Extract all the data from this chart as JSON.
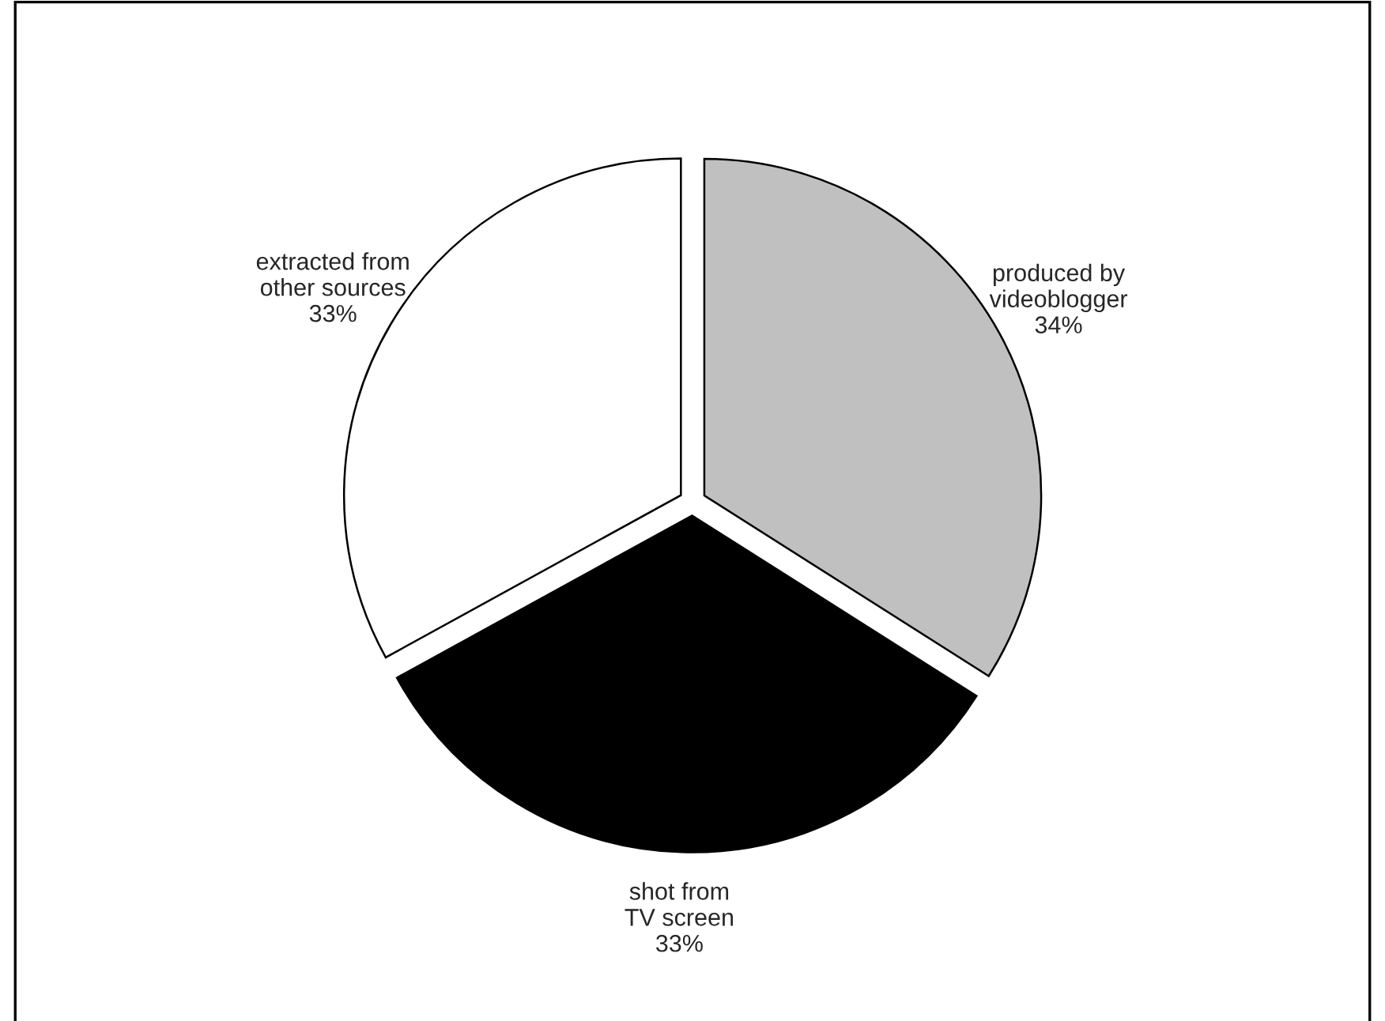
{
  "chart_data": {
    "type": "pie",
    "categories": [
      "produced by videoblogger",
      "shot from TV screen",
      "extracted from other sources"
    ],
    "values": [
      34,
      33,
      33
    ],
    "value_labels": [
      "34%",
      "33%",
      "33%"
    ],
    "colors": [
      "#c0c0c0",
      "#000000",
      "#ffffff"
    ],
    "legend": false
  }
}
